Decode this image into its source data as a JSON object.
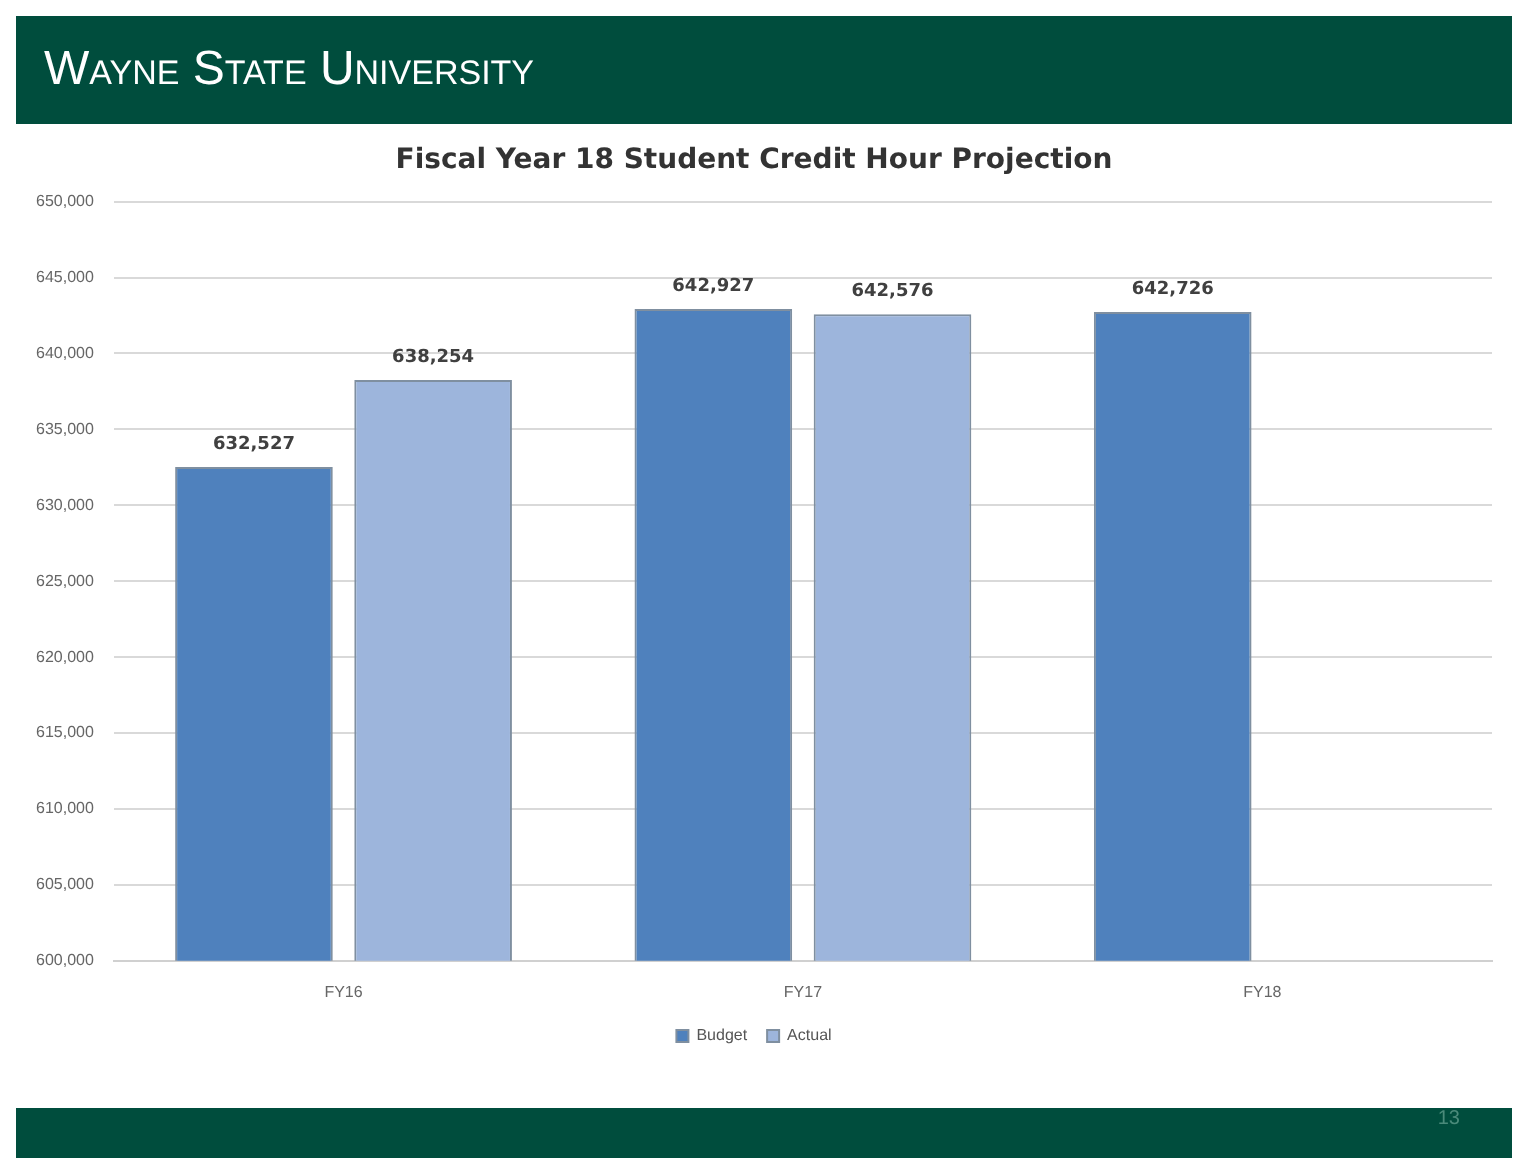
{
  "chart_data": {
    "type": "bar",
    "title": "Fiscal Year 18 Student Credit Hour Projection",
    "categories": [
      "FY16",
      "FY17",
      "FY18"
    ],
    "series": [
      {
        "name": "Budget",
        "color": "#4f81bd",
        "values": [
          632527,
          642927,
          642726
        ],
        "value_labels": [
          "632,527",
          "642,927",
          "642,726"
        ]
      },
      {
        "name": "Actual",
        "color": "#9db5dc",
        "values": [
          638254,
          642576,
          null
        ],
        "value_labels": [
          "638,254",
          "642,576",
          null
        ]
      }
    ],
    "ylim": [
      600000,
      650000
    ],
    "yticks": [
      {
        "value": 600000,
        "label": "600,000"
      },
      {
        "value": 605000,
        "label": "605,000"
      },
      {
        "value": 610000,
        "label": "610,000"
      },
      {
        "value": 615000,
        "label": "615,000"
      },
      {
        "value": 620000,
        "label": "620,000"
      },
      {
        "value": 625000,
        "label": "625,000"
      },
      {
        "value": 630000,
        "label": "630,000"
      },
      {
        "value": 635000,
        "label": "635,000"
      },
      {
        "value": 640000,
        "label": "640,000"
      },
      {
        "value": 645000,
        "label": "645,000"
      },
      {
        "value": 650000,
        "label": "650,000"
      }
    ],
    "grid": "y",
    "legend": "bottom",
    "annotations": [
      "Wayne State University",
      "13"
    ]
  }
}
